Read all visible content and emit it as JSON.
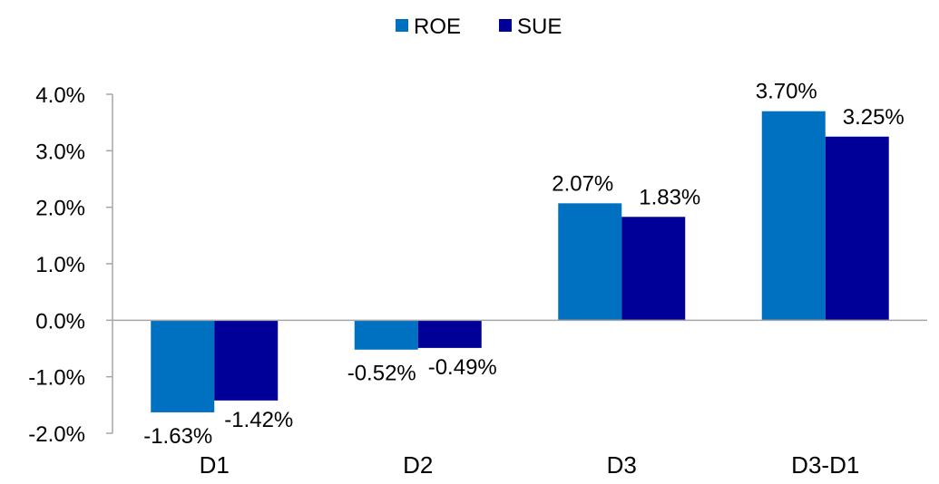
{
  "chart_data": {
    "type": "bar",
    "categories": [
      "D1",
      "D2",
      "D3",
      "D3-D1"
    ],
    "series": [
      {
        "name": "ROE",
        "values": [
          -1.63,
          -0.52,
          2.07,
          3.7
        ],
        "labels": [
          "-1.63%",
          "-0.52%",
          "2.07%",
          "3.70%"
        ],
        "color": "#0070C0"
      },
      {
        "name": "SUE",
        "values": [
          -1.42,
          -0.49,
          1.83,
          3.25
        ],
        "labels": [
          "-1.42%",
          "-0.49%",
          "1.83%",
          "3.25%"
        ],
        "color": "#000099"
      }
    ],
    "ylim": [
      -2.0,
      4.0
    ],
    "yticks": [
      4.0,
      3.0,
      2.0,
      1.0,
      0.0,
      -1.0,
      -2.0
    ],
    "ytick_labels": [
      "4.0%",
      "3.0%",
      "2.0%",
      "1.0%",
      "0.0%",
      "-1.0%",
      "-2.0%"
    ],
    "legend_position": "top-center",
    "grid": false
  }
}
